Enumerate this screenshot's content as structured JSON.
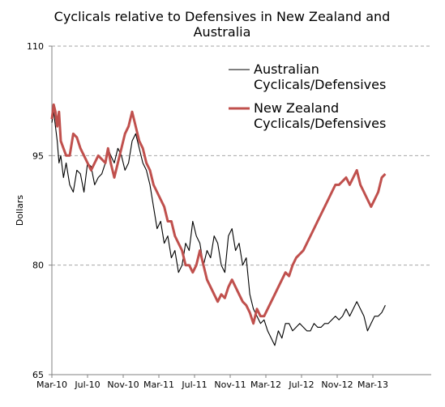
{
  "chart_data": {
    "type": "line",
    "title_lines": [
      "Cyclicals relative to  Defensives in  New Zealand and",
      "Australia"
    ],
    "xlabel": "",
    "ylabel": "Dollars",
    "ylim": [
      65,
      110
    ],
    "yticks": [
      65,
      80,
      95,
      110
    ],
    "x_tick_labels": [
      "Mar-10",
      "Jul-10",
      "Nov-10",
      "Mar-11",
      "Jul-11",
      "Nov-11",
      "Mar-12",
      "Jul-12",
      "Nov-12",
      "Mar-13"
    ],
    "grid": "horizontal dashed",
    "legend_position": "top-right",
    "colors": {
      "australia": "#000000",
      "new_zealand": "#c0504d",
      "grid": "#a6a6a6",
      "axis": "#808080"
    },
    "series": [
      {
        "key": "australia",
        "name_lines": [
          "Australian",
          "Cyclicals/Defensives"
        ],
        "x": [
          0,
          0.2,
          0.4,
          0.6,
          0.8,
          1.0,
          1.3,
          1.6,
          2.0,
          2.4,
          2.8,
          3.2,
          3.6,
          4.0,
          4.4,
          4.8,
          5.2,
          5.6,
          6.0,
          6.3,
          6.6,
          7.0,
          7.4,
          7.8,
          8.2,
          8.6,
          9.0,
          9.4,
          9.8,
          10.2,
          10.6,
          11.0,
          11.4,
          11.8,
          12.2,
          12.6,
          13.0,
          13.4,
          13.8,
          14.2,
          14.6,
          15.0,
          15.4,
          15.8,
          16.2,
          16.6,
          17.0,
          17.4,
          17.8,
          18.2,
          18.6,
          19.0,
          19.4,
          19.8,
          20.2,
          20.6,
          21.0,
          21.4,
          21.8,
          22.2,
          22.6,
          23.0,
          23.4,
          23.8,
          24.2,
          24.6,
          25.0,
          25.4,
          25.8,
          26.2,
          26.6,
          27.0,
          27.4,
          27.8,
          28.2,
          28.6,
          29.0,
          29.4,
          29.8,
          30.2,
          30.6,
          31.0,
          31.4,
          31.8,
          32.2,
          32.6,
          33.0,
          33.4,
          33.8,
          34.2,
          34.6,
          35.0,
          35.4,
          35.8,
          36.2,
          36.6,
          37.0,
          37.4
        ],
        "y": [
          99.5,
          101,
          99,
          97,
          94,
          95,
          92,
          94,
          91,
          90,
          93,
          92.5,
          90,
          94,
          93.5,
          91,
          92,
          92.5,
          94,
          96,
          95,
          94,
          96,
          95,
          93,
          94,
          97,
          98,
          96,
          94,
          93,
          91,
          88,
          85,
          86,
          83,
          84,
          81,
          82,
          79,
          80,
          83,
          82,
          86,
          84,
          83,
          80,
          82,
          81,
          84,
          83,
          80,
          79,
          84,
          85,
          82,
          83,
          80,
          81,
          76,
          74,
          73,
          72,
          72.5,
          71,
          70,
          69,
          71,
          70,
          72,
          72,
          71,
          71.5,
          72,
          71.5,
          71,
          71,
          72,
          71.5,
          71.5,
          72,
          72,
          72.5,
          73,
          72.5,
          73,
          74,
          73,
          74,
          75,
          74,
          73,
          71,
          72,
          73,
          73,
          73.5,
          74.5
        ]
      },
      {
        "key": "new_zealand",
        "name_lines": [
          "New Zealand",
          "Cyclicals/Defensives"
        ],
        "x": [
          0,
          0.2,
          0.4,
          0.6,
          0.8,
          1.0,
          1.3,
          1.6,
          2.0,
          2.4,
          2.8,
          3.2,
          3.6,
          4.0,
          4.4,
          4.8,
          5.2,
          5.6,
          6.0,
          6.3,
          6.6,
          7.0,
          7.4,
          7.8,
          8.2,
          8.6,
          9.0,
          9.4,
          9.8,
          10.2,
          10.6,
          11.0,
          11.4,
          11.8,
          12.2,
          12.6,
          13.0,
          13.4,
          13.8,
          14.2,
          14.6,
          15.0,
          15.4,
          15.8,
          16.2,
          16.6,
          17.0,
          17.4,
          17.8,
          18.2,
          18.6,
          19.0,
          19.4,
          19.8,
          20.2,
          20.6,
          21.0,
          21.4,
          21.8,
          22.2,
          22.6,
          23.0,
          23.4,
          23.8,
          24.2,
          24.6,
          25.0,
          25.4,
          25.8,
          26.2,
          26.6,
          27.0,
          27.4,
          27.8,
          28.2,
          28.6,
          29.0,
          29.4,
          29.8,
          30.2,
          30.6,
          31.0,
          31.4,
          31.8,
          32.2,
          32.6,
          33.0,
          33.4,
          33.8,
          34.2,
          34.6,
          35.0,
          35.4,
          35.8,
          36.2,
          36.6,
          37.0,
          37.4
        ],
        "y": [
          100,
          102,
          101,
          99,
          101,
          97,
          96,
          95,
          95,
          98,
          97.5,
          96,
          95,
          94,
          93,
          94,
          95,
          94.5,
          94,
          96,
          94,
          92,
          94,
          96,
          98,
          99,
          101,
          99,
          97,
          96,
          94,
          93,
          91,
          90,
          89,
          88,
          86,
          86,
          84,
          83,
          82,
          80,
          80,
          79,
          80,
          82,
          80,
          78,
          77,
          76,
          75,
          76,
          75.5,
          77,
          78,
          77,
          76,
          75,
          74.5,
          73.5,
          72,
          74,
          73,
          73,
          74,
          75,
          76,
          77,
          78,
          79,
          78.5,
          80,
          81,
          81.5,
          82,
          83,
          84,
          85,
          86,
          87,
          88,
          89,
          90,
          91,
          91,
          91.5,
          92,
          91,
          92,
          93,
          91,
          90,
          89,
          88,
          89,
          90,
          92,
          92.5
        ]
      }
    ]
  }
}
